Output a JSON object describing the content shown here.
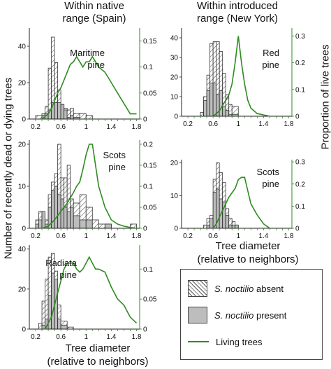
{
  "headers": {
    "left": [
      "Within native",
      "range (Spain)"
    ],
    "right": [
      "Within introduced",
      "range (New York)"
    ]
  },
  "axis_titles": {
    "y_left": "Number of recently dead or dying trees",
    "y_right": "Proportion of live trees",
    "x_left": [
      "Tree diameter",
      "(relative to neighbors)"
    ],
    "x_right": [
      "Tree diameter",
      "(relative to neighbors)"
    ]
  },
  "legend": {
    "items": [
      {
        "italic": "S. noctilio",
        "rest": " absent"
      },
      {
        "italic": "S. noctilio",
        "rest": " present"
      },
      {
        "italic": "",
        "rest": "Living trees"
      }
    ]
  },
  "colors": {
    "present_fill": "#bdbdbd",
    "line": "#2e8b1f",
    "hatch": "#555555"
  },
  "chart_data": [
    {
      "type": "bar",
      "title": "Maritime pine",
      "label_lines": [
        "Maritime",
        "pine"
      ],
      "x_ticks": [
        0.2,
        0.6,
        1,
        1.4,
        1.8
      ],
      "x_tick_labels": [
        "0.2",
        "0.6",
        "1",
        "1.4",
        "1.8"
      ],
      "xlim": [
        0.1,
        1.85
      ],
      "ylim": [
        0,
        50
      ],
      "y_ticks": [
        0,
        20,
        40
      ],
      "y2lim": [
        0,
        0.175
      ],
      "y2_ticks": [
        0,
        0.05,
        0.1,
        0.15
      ],
      "y2_tick_labels": [
        "0",
        "0.05",
        "0.1",
        "0.15"
      ],
      "bin_edges": [
        0.2,
        0.3,
        0.35,
        0.4,
        0.45,
        0.5,
        0.55,
        0.6,
        0.65,
        0.7,
        0.75,
        0.8,
        0.9,
        1.0,
        1.1
      ],
      "present": [
        0,
        2,
        3,
        5,
        9,
        9,
        9,
        8,
        5,
        1,
        2,
        1,
        0,
        0
      ],
      "total": [
        2,
        3,
        7,
        28,
        45,
        31,
        16,
        8,
        6,
        5,
        6,
        3,
        3,
        2
      ],
      "series": [
        {
          "name": "Living trees",
          "x": [
            0.3,
            0.4,
            0.45,
            0.5,
            0.55,
            0.6,
            0.65,
            0.7,
            0.75,
            0.8,
            0.85,
            0.9,
            0.95,
            1.0,
            1.05,
            1.1,
            1.2,
            1.3,
            1.4,
            1.5,
            1.6,
            1.7,
            1.8
          ],
          "y": [
            0,
            0.01,
            0.02,
            0.035,
            0.05,
            0.06,
            0.075,
            0.09,
            0.105,
            0.11,
            0.12,
            0.11,
            0.1,
            0.11,
            0.11,
            0.12,
            0.1,
            0.09,
            0.07,
            0.05,
            0.03,
            0.01,
            0.01
          ]
        }
      ]
    },
    {
      "type": "bar",
      "title": "Scots pine",
      "label_lines": [
        "Scots",
        "pine"
      ],
      "x_ticks": [
        0.2,
        0.6,
        1,
        1.4,
        1.8
      ],
      "x_tick_labels": [
        "0.2",
        "0.6",
        "1",
        "1.4",
        "1.8"
      ],
      "xlim": [
        0.1,
        1.85
      ],
      "ylim": [
        0,
        21
      ],
      "y_ticks": [
        0,
        10,
        20
      ],
      "y2lim": [
        0,
        0.21
      ],
      "y2_ticks": [
        0,
        0.05,
        0.1,
        0.15,
        0.2
      ],
      "y2_tick_labels": [
        "0",
        "0.05",
        "0.1",
        "0.15",
        "0.2"
      ],
      "bin_edges": [
        0.2,
        0.25,
        0.3,
        0.35,
        0.4,
        0.45,
        0.5,
        0.55,
        0.6,
        0.65,
        0.7,
        0.75,
        0.8,
        0.9,
        1.0,
        1.1,
        1.2,
        1.3,
        1.4,
        1.5,
        1.6,
        1.7,
        1.8
      ],
      "present": [
        1,
        2,
        4,
        1,
        5,
        9,
        10,
        8,
        7,
        5,
        4,
        5,
        3,
        2,
        2,
        0,
        0,
        1,
        0,
        0,
        0,
        0
      ],
      "total": [
        2,
        4,
        3,
        2,
        8,
        11,
        13,
        20,
        12,
        12,
        15,
        7,
        6,
        8,
        5,
        2,
        1,
        1,
        0,
        0,
        0,
        1
      ],
      "series": [
        {
          "name": "Living trees",
          "x": [
            0.3,
            0.4,
            0.5,
            0.6,
            0.7,
            0.8,
            0.85,
            0.9,
            0.95,
            1.0,
            1.05,
            1.1,
            1.2,
            1.3,
            1.4,
            1.5,
            1.6,
            1.7,
            1.8
          ],
          "y": [
            0,
            0.005,
            0.02,
            0.04,
            0.06,
            0.085,
            0.1,
            0.11,
            0.14,
            0.175,
            0.2,
            0.2,
            0.1,
            0.05,
            0.02,
            0.01,
            0.005,
            0.002,
            0
          ]
        }
      ]
    },
    {
      "type": "bar",
      "title": "Radiata pine",
      "label_lines": [
        "Radiata",
        "pine"
      ],
      "x_ticks": [
        0.2,
        0.6,
        1,
        1.4,
        1.8
      ],
      "x_tick_labels": [
        "0.2",
        "0.6",
        "1",
        "1.4",
        "1.8"
      ],
      "xlim": [
        0.1,
        1.85
      ],
      "ylim": [
        0,
        42
      ],
      "y_ticks": [
        0,
        20,
        40
      ],
      "y2lim": [
        0,
        0.14
      ],
      "y2_ticks": [
        0,
        0.05,
        0.1
      ],
      "y2_tick_labels": [
        "0",
        "0.05",
        "0.1"
      ],
      "bin_edges": [
        0.25,
        0.3,
        0.35,
        0.4,
        0.45,
        0.5,
        0.55,
        0.6,
        0.7,
        0.8
      ],
      "present": [
        0,
        2,
        5,
        17,
        28,
        25,
        5,
        2,
        0
      ],
      "total": [
        3,
        14,
        25,
        36,
        38,
        29,
        12,
        4,
        1
      ],
      "series": [
        {
          "name": "Living trees",
          "x": [
            0.35,
            0.4,
            0.45,
            0.5,
            0.55,
            0.6,
            0.65,
            0.7,
            0.8,
            0.85,
            0.9,
            0.95,
            1.0,
            1.05,
            1.1,
            1.15,
            1.2,
            1.3,
            1.4,
            1.5,
            1.6,
            1.7,
            1.8
          ],
          "y": [
            0,
            0.01,
            0.02,
            0.04,
            0.06,
            0.08,
            0.1,
            0.11,
            0.11,
            0.1,
            0.095,
            0.1,
            0.11,
            0.12,
            0.11,
            0.1,
            0.1,
            0.095,
            0.07,
            0.05,
            0.04,
            0.02,
            0.01
          ]
        }
      ]
    },
    {
      "type": "bar",
      "title": "Red pine",
      "label_lines": [
        "Red",
        "pine"
      ],
      "x_ticks": [
        0.2,
        0.6,
        1,
        1.4,
        1.8
      ],
      "x_tick_labels": [
        "0.2",
        "0.6",
        "1",
        "1.4",
        "1.8"
      ],
      "xlim": [
        0.1,
        1.85
      ],
      "ylim": [
        0,
        45
      ],
      "y_ticks": [
        0,
        10,
        20,
        30,
        40
      ],
      "y2lim": [
        0,
        0.33
      ],
      "y2_ticks": [
        0,
        0.1,
        0.2,
        0.3
      ],
      "y2_tick_labels": [
        "0",
        "0.1",
        "0.2",
        "0.3"
      ],
      "bin_edges": [
        0.4,
        0.45,
        0.5,
        0.55,
        0.6,
        0.65,
        0.7,
        0.75,
        0.8,
        0.85,
        0.9,
        1.0
      ],
      "present": [
        0,
        8,
        13,
        17,
        17,
        11,
        13,
        5,
        3,
        1,
        1
      ],
      "total": [
        2,
        10,
        21,
        37,
        38,
        38,
        33,
        22,
        11,
        6,
        5
      ],
      "series": [
        {
          "name": "Living trees",
          "x": [
            0.6,
            0.65,
            0.7,
            0.75,
            0.8,
            0.85,
            0.9,
            0.95,
            1.0,
            1.05,
            1.1,
            1.15,
            1.2,
            1.3,
            1.4,
            1.5
          ],
          "y": [
            0,
            0.01,
            0.02,
            0.04,
            0.06,
            0.08,
            0.12,
            0.2,
            0.3,
            0.2,
            0.12,
            0.06,
            0.03,
            0.01,
            0.005,
            0
          ]
        }
      ]
    },
    {
      "type": "bar",
      "title": "Scots pine",
      "label_lines": [
        "Scots",
        "pine"
      ],
      "x_ticks": [
        0.2,
        0.6,
        1,
        1.4,
        1.8
      ],
      "x_tick_labels": [
        "0.2",
        "0.6",
        "1",
        "1.4",
        "1.8"
      ],
      "xlim": [
        0.1,
        1.85
      ],
      "ylim": [
        0,
        21
      ],
      "y_ticks": [
        0,
        10,
        20
      ],
      "y2lim": [
        0,
        0.31
      ],
      "y2_ticks": [
        0,
        0.1,
        0.2,
        0.3
      ],
      "y2_tick_labels": [
        "0",
        "0.1",
        "0.2",
        "0.3"
      ],
      "bin_edges": [
        0.45,
        0.5,
        0.55,
        0.6,
        0.65,
        0.7,
        0.75,
        0.8,
        0.85,
        0.9,
        0.95,
        1.0
      ],
      "present": [
        0,
        1,
        3,
        11,
        12,
        9,
        8,
        4,
        1,
        1,
        1
      ],
      "total": [
        1,
        3,
        4,
        15,
        20,
        17,
        14,
        6,
        3,
        2,
        1
      ],
      "series": [
        {
          "name": "Living trees",
          "x": [
            0.6,
            0.65,
            0.7,
            0.75,
            0.8,
            0.85,
            0.9,
            0.95,
            1.0,
            1.05,
            1.1,
            1.15,
            1.2,
            1.3,
            1.4,
            1.5
          ],
          "y": [
            0,
            0.02,
            0.05,
            0.08,
            0.11,
            0.14,
            0.16,
            0.18,
            0.22,
            0.23,
            0.23,
            0.17,
            0.11,
            0.06,
            0.02,
            0
          ]
        }
      ]
    }
  ]
}
